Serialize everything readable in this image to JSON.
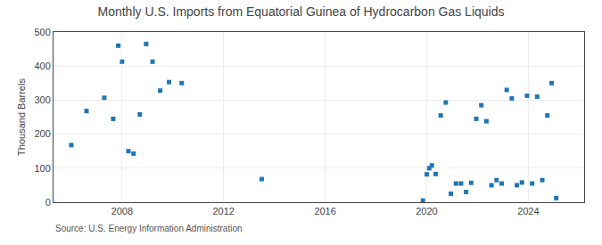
{
  "chart_data": {
    "type": "scatter",
    "title": "Monthly U.S. Imports from Equatorial Guinea of Hydrocarbon Gas Liquids",
    "ylabel": "Thousand Barrels",
    "annotations": [
      "Source: U.S. Energy Information Administration"
    ],
    "marker": "square",
    "x": [
      2006.0,
      2006.6,
      2007.3,
      2007.65,
      2007.85,
      2008.0,
      2008.25,
      2008.45,
      2008.7,
      2008.95,
      2009.2,
      2009.5,
      2009.85,
      2010.35,
      2013.5,
      2019.85,
      2020.0,
      2020.1,
      2020.2,
      2020.35,
      2020.55,
      2020.75,
      2020.95,
      2021.15,
      2021.35,
      2021.55,
      2021.75,
      2021.95,
      2022.15,
      2022.35,
      2022.55,
      2022.75,
      2022.95,
      2023.15,
      2023.35,
      2023.55,
      2023.75,
      2023.95,
      2024.15,
      2024.35,
      2024.55,
      2024.75,
      2024.92,
      2025.1
    ],
    "values": [
      168,
      268,
      307,
      245,
      460,
      413,
      150,
      143,
      258,
      465,
      413,
      328,
      353,
      350,
      68,
      5,
      82,
      100,
      108,
      83,
      255,
      293,
      25,
      55,
      55,
      30,
      57,
      245,
      285,
      238,
      50,
      65,
      55,
      330,
      305,
      50,
      58,
      313,
      55,
      310,
      65,
      255,
      350,
      12
    ],
    "xlim": [
      2005.3,
      2026.2
    ],
    "xticks": [
      2008,
      2012,
      2016,
      2020,
      2024
    ],
    "ylim": [
      0,
      500
    ],
    "yticks": [
      0,
      100,
      200,
      300,
      400,
      500
    ],
    "grid": true
  }
}
